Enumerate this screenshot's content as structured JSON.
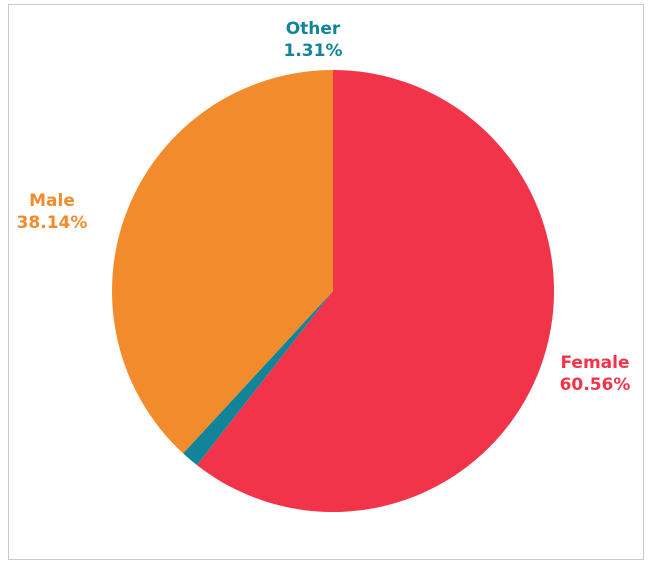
{
  "chart_data": {
    "type": "pie",
    "title": "",
    "start_angle_deg": 0,
    "direction": "clockwise",
    "slices": [
      {
        "label": "Female",
        "value": 60.56,
        "display": "60.56%",
        "color": "#F2344A"
      },
      {
        "label": "Other",
        "value": 1.31,
        "display": "1.31%",
        "color": "#12849A"
      },
      {
        "label": "Male",
        "value": 38.14,
        "display": "38.14%",
        "color": "#F28B2C"
      }
    ],
    "legend": "none"
  }
}
